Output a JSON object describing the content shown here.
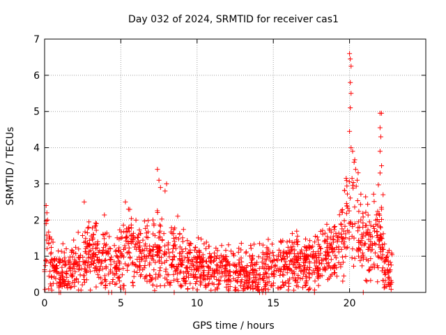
{
  "chart_data": {
    "type": "scatter",
    "title": "Day 032 of 2024, SRMTID for receiver cas1",
    "xlabel": "GPS time / hours",
    "ylabel": "SRMTID / TECUs",
    "xlim": [
      0,
      25
    ],
    "ylim": [
      0,
      7
    ],
    "xticks": [
      0,
      5,
      10,
      15,
      20
    ],
    "yticks": [
      0,
      1,
      2,
      3,
      4,
      5,
      6,
      7
    ],
    "grid": true,
    "marker": "+",
    "series": [
      {
        "name": "cas1",
        "color": "#ff0000",
        "profile": {
          "hours": [
            0.0,
            0.2,
            0.5,
            1.0,
            1.5,
            2.0,
            2.5,
            3.0,
            3.5,
            4.0,
            4.5,
            5.0,
            5.3,
            6.0,
            6.5,
            7.0,
            7.5,
            8.0,
            8.5,
            9.0,
            9.5,
            10.0,
            11.0,
            12.0,
            13.0,
            14.0,
            15.0,
            16.0,
            17.0,
            18.0,
            18.5,
            19.0,
            19.5,
            19.8,
            20.0,
            20.2,
            20.5,
            21.0,
            21.5,
            22.0,
            22.3,
            22.8
          ],
          "typical_srmtid": [
            0.9,
            1.2,
            0.6,
            0.5,
            0.6,
            0.7,
            0.9,
            1.0,
            1.0,
            1.0,
            0.6,
            1.0,
            1.3,
            1.1,
            1.2,
            1.0,
            1.2,
            0.9,
            1.0,
            0.9,
            0.8,
            0.8,
            0.7,
            0.6,
            0.6,
            0.6,
            0.7,
            0.8,
            0.8,
            1.0,
            1.1,
            1.2,
            1.5,
            2.0,
            2.5,
            2.6,
            1.8,
            1.3,
            1.4,
            1.6,
            0.6,
            0.5
          ]
        },
        "peaks": [
          {
            "x": 0.1,
            "y": 2.4
          },
          {
            "x": 0.15,
            "y": 2.2
          },
          {
            "x": 0.2,
            "y": 2.0
          },
          {
            "x": 0.1,
            "y": 1.9
          },
          {
            "x": 2.6,
            "y": 2.5
          },
          {
            "x": 5.3,
            "y": 2.5
          },
          {
            "x": 5.5,
            "y": 2.3
          },
          {
            "x": 7.4,
            "y": 3.4
          },
          {
            "x": 7.5,
            "y": 3.1
          },
          {
            "x": 7.6,
            "y": 2.9
          },
          {
            "x": 8.0,
            "y": 3.0
          },
          {
            "x": 7.9,
            "y": 2.8
          },
          {
            "x": 20.0,
            "y": 6.6
          },
          {
            "x": 20.05,
            "y": 6.45
          },
          {
            "x": 20.1,
            "y": 6.25
          },
          {
            "x": 20.05,
            "y": 5.8
          },
          {
            "x": 20.1,
            "y": 5.5
          },
          {
            "x": 20.05,
            "y": 5.1
          },
          {
            "x": 20.0,
            "y": 4.45
          },
          {
            "x": 20.1,
            "y": 4.0
          },
          {
            "x": 20.2,
            "y": 3.9
          },
          {
            "x": 20.3,
            "y": 3.6
          },
          {
            "x": 20.4,
            "y": 3.4
          },
          {
            "x": 20.5,
            "y": 3.1
          },
          {
            "x": 22.0,
            "y": 4.95
          },
          {
            "x": 22.1,
            "y": 4.95
          },
          {
            "x": 22.0,
            "y": 4.55
          },
          {
            "x": 22.05,
            "y": 4.3
          },
          {
            "x": 22.0,
            "y": 3.9
          },
          {
            "x": 22.1,
            "y": 3.5
          },
          {
            "x": 22.0,
            "y": 3.3
          },
          {
            "x": 22.2,
            "y": 2.7
          },
          {
            "x": 22.1,
            "y": 2.3
          }
        ],
        "zero_points": [
          0.95,
          1.05,
          4.2,
          4.4,
          5.3,
          8.5,
          14.1,
          14.3,
          14.5,
          17.7,
          20.9
        ]
      }
    ]
  }
}
